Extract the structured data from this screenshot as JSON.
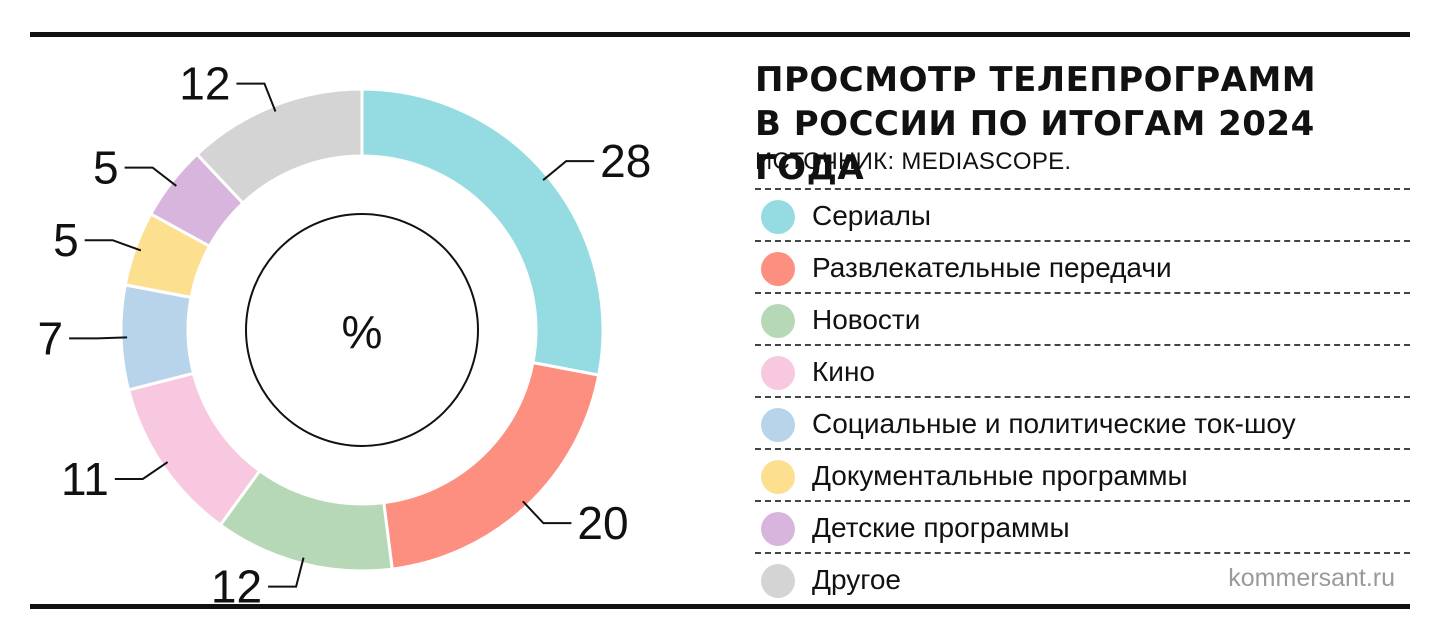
{
  "header": {
    "title_line1": "ПРОСМОТР ТЕЛЕПРОГРАММ",
    "title_line2": "В РОССИИ ПО ИТОГАМ 2024 ГОДА",
    "source": "ИСТОЧНИК: MEDIASCOPE."
  },
  "footer": {
    "brand": "kommersant.ru"
  },
  "chart_data": {
    "type": "pie",
    "variant": "donut",
    "title": "ПРОСМОТР ТЕЛЕПРОГРАММ В РОССИИ ПО ИТОГАМ 2024 ГОДА",
    "center_label": "%",
    "unit": "%",
    "categories": [
      "Сериалы",
      "Развлекательные передачи",
      "Новости",
      "Кино",
      "Социальные и политические ток-шоу",
      "Документальные программы",
      "Детские программы",
      "Другое"
    ],
    "values": [
      28,
      20,
      12,
      11,
      7,
      5,
      5,
      12
    ],
    "value_labels": [
      "28",
      "20",
      "12",
      "11",
      "7",
      "5",
      "5",
      "12"
    ],
    "colors": [
      "#94dce1",
      "#fc8f7f",
      "#b6d8b6",
      "#f7c8df",
      "#b8d4eb",
      "#fde08f",
      "#d8b5dc",
      "#d4d4d4"
    ],
    "legend_position": "right",
    "start_angle": "top, clockwise"
  }
}
